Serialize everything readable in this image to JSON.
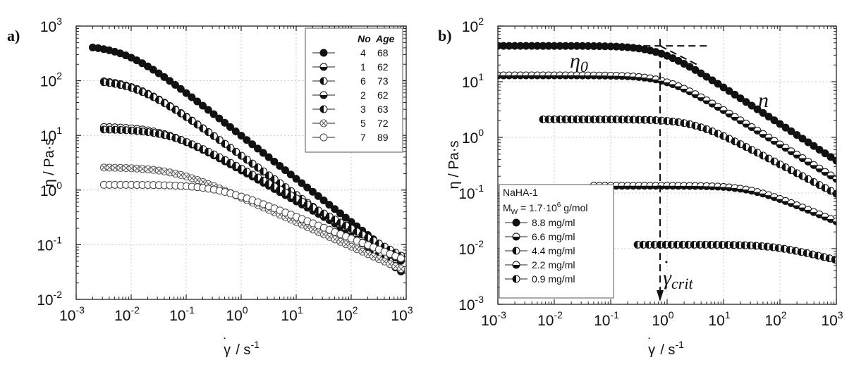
{
  "chart_data": [
    {
      "panel": "a)",
      "type": "scatter",
      "xscale": "log",
      "yscale": "log",
      "xlim": [
        0.001,
        1000
      ],
      "ylim": [
        0.01,
        1000
      ],
      "xlabel": "γ̇ / s⁻¹",
      "ylabel": "η / Pa·s",
      "grid": true,
      "x_ticks": [
        "10^-3",
        "10^-2",
        "10^-1",
        "10^0",
        "10^1",
        "10^2",
        "10^3"
      ],
      "y_ticks": [
        "10^-2",
        "10^-1",
        "10^0",
        "10^1",
        "10^2",
        "10^3"
      ],
      "legend": {
        "placement": "top-right",
        "headers": [
          "No",
          "Age"
        ]
      },
      "series": [
        {
          "name": "4",
          "age": "68",
          "marker": "filled",
          "eta0": 450,
          "gc": 0.008,
          "n": 0.21,
          "p": 1.25,
          "xmin": 0.002,
          "xmax": 1000
        },
        {
          "name": "1",
          "age": "62",
          "marker": "half-bottom",
          "eta0": 108,
          "gc": 0.012,
          "n": 0.27,
          "p": 1.25,
          "xmin": 0.0032,
          "xmax": 1000
        },
        {
          "name": "6",
          "age": "73",
          "marker": "half-left",
          "eta0": 104,
          "gc": 0.012,
          "n": 0.28,
          "p": 1.25,
          "xmin": 0.0032,
          "xmax": 1000
        },
        {
          "name": "2",
          "age": "62",
          "marker": "half-bottom",
          "eta0": 14.5,
          "gc": 0.04,
          "n": 0.43,
          "p": 1.25,
          "xmin": 0.0032,
          "xmax": 1000
        },
        {
          "name": "3",
          "age": "63",
          "marker": "half-left",
          "eta0": 13,
          "gc": 0.05,
          "n": 0.45,
          "p": 1.25,
          "xmin": 0.0032,
          "xmax": 1000
        },
        {
          "name": "5",
          "age": "72",
          "marker": "crossed",
          "eta0": 2.6,
          "gc": 0.06,
          "n": 0.55,
          "p": 1.25,
          "xmin": 0.0032,
          "xmax": 1000
        },
        {
          "name": "7",
          "age": "89",
          "marker": "open",
          "eta0": 1.25,
          "gc": 0.35,
          "n": 0.6,
          "p": 1.25,
          "xmin": 0.0032,
          "xmax": 1000
        }
      ]
    },
    {
      "panel": "b)",
      "type": "scatter",
      "xscale": "log",
      "yscale": "log",
      "xlim": [
        0.001,
        1000
      ],
      "ylim": [
        0.001,
        100
      ],
      "xlabel": "γ̇ / s⁻¹",
      "ylabel": "η / Pa·s",
      "grid": true,
      "x_ticks": [
        "10^-3",
        "10^-2",
        "10^-1",
        "10^0",
        "10^1",
        "10^2",
        "10^3"
      ],
      "y_ticks": [
        "10^-3",
        "10^-2",
        "10^-1",
        "10^0",
        "10^1",
        "10^2"
      ],
      "legend": {
        "placement": "bottom-left",
        "title": "NaHA-1",
        "subtitle": "M_W = 1.7·10^6 g/mol"
      },
      "annotations": [
        "η0",
        "n",
        "γ̇crit"
      ],
      "series": [
        {
          "name": "8.8 mg/ml",
          "marker": "filled",
          "eta0": 44,
          "gc": 0.75,
          "n": 0.34,
          "p": 1.5,
          "xmin": 0.001,
          "xmax": 1000
        },
        {
          "name": "6.6 mg/ml",
          "marker": "half-bottom",
          "eta0": 13,
          "gc": 1.0,
          "n": 0.38,
          "p": 1.5,
          "xmin": 0.001,
          "xmax": 1000
        },
        {
          "name": "4.4 mg/ml",
          "marker": "half-left",
          "eta0": 2.1,
          "gc": 3.0,
          "n": 0.47,
          "p": 1.5,
          "xmin": 0.0063,
          "xmax": 1000
        },
        {
          "name": "2.2 mg/ml",
          "marker": "half-bottom",
          "eta0": 0.135,
          "gc": 30,
          "n": 0.58,
          "p": 1.5,
          "xmin": 0.05,
          "xmax": 1000
        },
        {
          "name": "0.9 mg/ml",
          "marker": "half-left",
          "eta0": 0.0118,
          "gc": 80,
          "n": 0.75,
          "p": 1.5,
          "xmin": 0.3,
          "xmax": 1000
        }
      ]
    }
  ]
}
